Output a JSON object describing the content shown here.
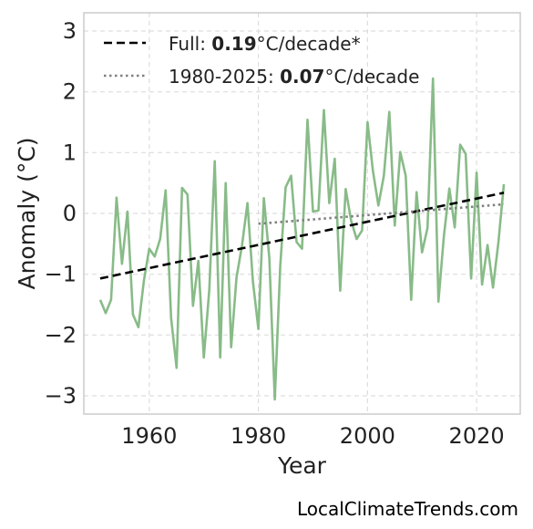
{
  "chart_data": {
    "type": "line",
    "xlabel": "Year",
    "ylabel": "Anomaly (°C)",
    "xlim": [
      1948,
      2028
    ],
    "ylim": [
      -3.3,
      3.3
    ],
    "xticks": [
      1960,
      1980,
      2000,
      2020
    ],
    "yticks": [
      3,
      2,
      1,
      0,
      -1,
      -2,
      -3
    ],
    "ytick_labels": [
      "3",
      "2",
      "1",
      "0",
      "−1",
      "−2",
      "−3"
    ],
    "grid": true,
    "legend_position": "top-left",
    "colors": {
      "series": "#88bb88",
      "full_trend": "#000000",
      "recent_trend": "#808080"
    },
    "series": [
      {
        "x": [
          1951,
          1952,
          1953,
          1954,
          1955,
          1956,
          1957,
          1958,
          1959,
          1960,
          1961,
          1962,
          1963,
          1964,
          1965,
          1966,
          1967,
          1968,
          1969,
          1970,
          1971,
          1972,
          1973,
          1974,
          1975,
          1976,
          1977,
          1978,
          1979,
          1980,
          1981,
          1982,
          1983,
          1984,
          1985,
          1986,
          1987,
          1988,
          1989,
          1990,
          1991,
          1992,
          1993,
          1994,
          1995,
          1996,
          1997,
          1998,
          1999,
          2000,
          2001,
          2002,
          2003,
          2004,
          2005,
          2006,
          2007,
          2008,
          2009,
          2010,
          2011,
          2012,
          2013,
          2014,
          2015,
          2016,
          2017,
          2018,
          2019,
          2020,
          2021,
          2022,
          2023,
          2024,
          2025
        ],
        "y": [
          -1.42,
          -1.64,
          -1.42,
          0.26,
          -0.83,
          0.03,
          -1.66,
          -1.87,
          -1.11,
          -0.58,
          -0.71,
          -0.42,
          0.38,
          -1.72,
          -2.54,
          0.42,
          0.31,
          -1.52,
          -0.78,
          -2.37,
          -1.26,
          0.86,
          -2.37,
          0.5,
          -2.2,
          -1.05,
          -0.53,
          0.17,
          -1.12,
          -1.9,
          0.25,
          -0.73,
          -3.06,
          -0.86,
          0.43,
          0.62,
          -0.47,
          -0.58,
          1.54,
          0.03,
          0.05,
          1.7,
          0.17,
          0.9,
          -1.27,
          0.4,
          -0.12,
          -0.42,
          -0.28,
          1.5,
          0.7,
          0.13,
          0.62,
          1.67,
          -0.2,
          1.01,
          0.62,
          -1.42,
          0.35,
          -0.64,
          -0.24,
          2.22,
          -1.45,
          -0.37,
          0.41,
          -0.23,
          1.13,
          0.98,
          -1.07,
          0.67,
          -1.17,
          -0.52,
          -1.22,
          -0.48,
          0.48
        ]
      }
    ],
    "trends": [
      {
        "label_prefix": "Full: ",
        "label_value": "0.19",
        "label_suffix": "°C/decade*",
        "style": "dashed",
        "x": [
          1951,
          2025
        ],
        "y": [
          -1.07,
          0.34
        ]
      },
      {
        "label_prefix": "1980-2025: ",
        "label_value": "0.07",
        "label_suffix": "°C/decade",
        "style": "dotted",
        "x": [
          1980,
          2025
        ],
        "y": [
          -0.17,
          0.15
        ]
      }
    ]
  },
  "watermark": "LocalClimateTrends.com"
}
